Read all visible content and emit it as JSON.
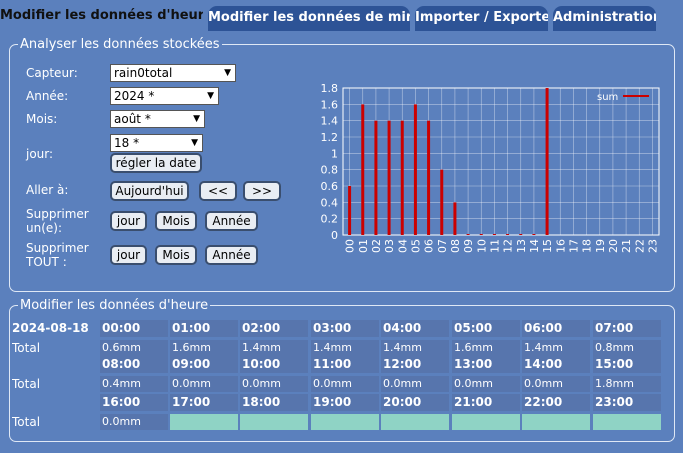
{
  "tabs": [
    {
      "label": "Modifier les données d'heure",
      "active": true
    },
    {
      "label": "Modifier les données de minute",
      "active": false
    },
    {
      "label": "Importer / Exporter",
      "active": false
    },
    {
      "label": "Administration",
      "active": false
    }
  ],
  "analyse": {
    "legend": "Analyser les données stockées",
    "capteur_label": "Capteur:",
    "capteur_value": "rain0total",
    "annee_label": "Année:",
    "annee_value": "2024 *",
    "mois_label": "Mois:",
    "mois_value": "août *",
    "jour_label": "jour:",
    "jour_value": "18 *",
    "set_date_button": "régler la date",
    "aller_label": "Aller à:",
    "today_button": "Aujourd'hui",
    "prev_button": "<<",
    "next_button": ">>",
    "supprimer_un_label_1": "Supprimer",
    "supprimer_un_label_2": "un(e):",
    "supprimer_tout_label_1": "Supprimer",
    "supprimer_tout_label_2": "TOUT :",
    "jour_button": "jour",
    "mois_button": "Mois",
    "annee_button": "Année"
  },
  "chart_data": {
    "type": "bar",
    "categories": [
      "00",
      "01",
      "02",
      "03",
      "04",
      "05",
      "06",
      "07",
      "08",
      "09",
      "10",
      "11",
      "12",
      "13",
      "14",
      "15",
      "16",
      "17",
      "18",
      "19",
      "20",
      "21",
      "22",
      "23"
    ],
    "series": [
      {
        "name": "sum",
        "values": [
          0.6,
          1.6,
          1.4,
          1.4,
          1.4,
          1.6,
          1.4,
          0.8,
          0.4,
          0.0,
          0.0,
          0.0,
          0.0,
          0.0,
          0.0,
          1.8,
          null,
          null,
          null,
          null,
          null,
          null,
          null,
          null
        ]
      }
    ],
    "yticks": [
      "0",
      "0.2",
      "0.4",
      "0.6",
      "0.8",
      "1",
      "1.2",
      "1.4",
      "1.6",
      "1.8"
    ],
    "ylim": [
      0,
      1.8
    ],
    "grid": true,
    "legend_position": "top-right",
    "bar_color": "#cc0000"
  },
  "hourly": {
    "legend": "Modifier les données d'heure",
    "date": "2024-08-18",
    "total_label": "Total",
    "rows": [
      {
        "hours": [
          "00:00",
          "01:00",
          "02:00",
          "03:00",
          "04:00",
          "05:00",
          "06:00",
          "07:00"
        ],
        "values": [
          "0.6mm",
          "1.6mm",
          "1.4mm",
          "1.4mm",
          "1.4mm",
          "1.6mm",
          "1.4mm",
          "0.8mm"
        ]
      },
      {
        "hours": [
          "08:00",
          "09:00",
          "10:00",
          "11:00",
          "12:00",
          "13:00",
          "14:00",
          "15:00"
        ],
        "values": [
          "0.4mm",
          "0.0mm",
          "0.0mm",
          "0.0mm",
          "0.0mm",
          "0.0mm",
          "0.0mm",
          "1.8mm"
        ]
      },
      {
        "hours": [
          "16:00",
          "17:00",
          "18:00",
          "19:00",
          "20:00",
          "21:00",
          "22:00",
          "23:00"
        ],
        "values": [
          "0.0mm",
          "",
          "",
          "",
          "",
          "",
          "",
          ""
        ]
      }
    ]
  }
}
